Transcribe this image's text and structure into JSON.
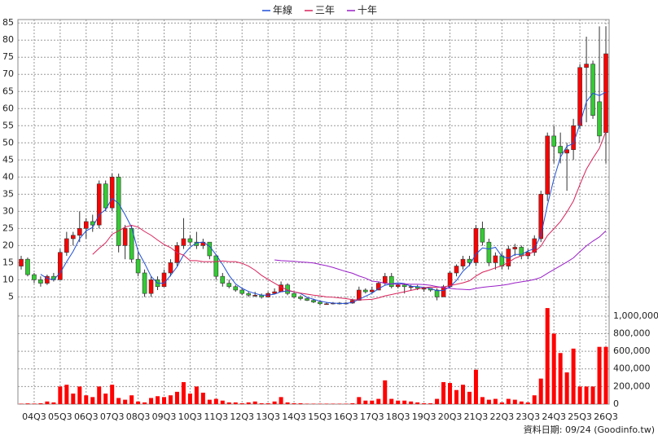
{
  "chart_data": {
    "type": "candlestick",
    "categories": [
      null,
      null,
      "04Q3",
      null,
      null,
      null,
      "05Q3",
      null,
      null,
      null,
      "06Q3",
      null,
      null,
      null,
      "07Q3",
      null,
      null,
      null,
      "08Q3",
      null,
      null,
      null,
      "09Q3",
      null,
      null,
      null,
      "10Q3",
      null,
      null,
      null,
      "11Q3",
      null,
      null,
      null,
      "12Q3",
      null,
      null,
      null,
      "13Q3",
      null,
      null,
      null,
      "14Q3",
      null,
      null,
      null,
      "15Q3",
      null,
      null,
      null,
      "16Q3",
      null,
      null,
      null,
      "17Q3",
      null,
      null,
      null,
      "18Q3",
      null,
      null,
      null,
      "19Q3",
      null,
      null,
      null,
      "20Q3",
      null,
      null,
      null,
      "21Q3",
      null,
      null,
      null,
      "22Q3",
      null,
      null,
      null,
      "23Q3",
      null,
      null,
      null,
      "24Q3",
      null,
      null,
      null,
      "25Q3",
      null,
      null,
      null,
      "26Q3"
    ],
    "open": [
      14,
      16,
      11.5,
      10,
      9,
      11,
      10,
      18,
      22,
      23,
      25,
      27,
      26,
      38,
      31,
      40,
      20,
      25,
      16,
      12,
      6,
      10,
      8,
      12,
      15,
      20,
      22,
      21,
      20,
      21,
      17,
      11,
      9,
      8,
      7,
      6,
      5.5,
      5.5,
      5,
      6,
      6.5,
      8.5,
      6,
      5,
      4.5,
      4,
      3.5,
      3,
      3,
      3.2,
      3,
      3.2,
      4,
      7,
      6.5,
      7,
      9,
      11,
      8,
      8.5,
      8,
      8,
      7.5,
      7.5,
      7,
      5,
      8,
      12,
      14,
      16,
      15,
      25,
      21,
      15,
      17,
      14,
      19,
      19.5,
      17,
      18,
      22,
      35,
      52,
      49,
      47,
      48,
      55,
      72,
      73,
      62,
      53
    ],
    "high": [
      17,
      16.5,
      12,
      11,
      11.5,
      12,
      19,
      24,
      24,
      30,
      28,
      29,
      39,
      39,
      41,
      41,
      26,
      26,
      18,
      13,
      11,
      11,
      13,
      16,
      21,
      28,
      23,
      24,
      22,
      21,
      17.5,
      12,
      10,
      8.5,
      7.5,
      6.5,
      6.5,
      6,
      6.5,
      7.5,
      9.5,
      9,
      6.5,
      5.5,
      5,
      4.5,
      4,
      3.5,
      3.5,
      3.5,
      3.5,
      4.5,
      8,
      7.5,
      8,
      9.5,
      12,
      12,
      9,
      9,
      8.5,
      8.5,
      8,
      7.5,
      7.5,
      8.5,
      12.5,
      14.5,
      17,
      17,
      26,
      27,
      22,
      18,
      18,
      20,
      20.5,
      20,
      19,
      23,
      36,
      53,
      55,
      53,
      50,
      57,
      73,
      81,
      74,
      84,
      84
    ],
    "low": [
      13,
      11,
      9,
      8,
      8.5,
      9.5,
      10,
      17,
      20,
      21,
      22,
      24,
      25,
      30,
      30,
      18,
      16,
      15,
      11,
      5,
      5,
      7,
      8,
      11,
      14,
      19,
      20,
      19,
      19,
      16,
      10,
      8,
      7.5,
      6.5,
      5.5,
      5,
      5,
      4.5,
      5,
      6,
      6.5,
      5.5,
      4.5,
      4,
      3.8,
      3.2,
      2.5,
      2.8,
      2.8,
      2.8,
      2.8,
      3,
      4,
      6,
      6,
      7,
      8.5,
      7.5,
      7.5,
      6,
      7,
      7,
      6.5,
      6.5,
      4,
      5,
      7.5,
      11,
      13,
      14,
      14,
      20,
      14,
      13,
      13,
      13,
      17,
      16,
      16,
      17,
      21,
      33,
      44,
      44,
      36,
      45,
      54,
      56,
      57,
      50,
      44
    ],
    "close": [
      16,
      11.5,
      10,
      9,
      11,
      10,
      18,
      22,
      23,
      25,
      27,
      26,
      38,
      31,
      40,
      20,
      25,
      16,
      12,
      6,
      10,
      8,
      12,
      15,
      20,
      22,
      21,
      20,
      21,
      17,
      11,
      9,
      8,
      7,
      6,
      5.5,
      5.5,
      5,
      6,
      6.5,
      8.5,
      6,
      5,
      4.5,
      4,
      3.5,
      3,
      3,
      3.2,
      3,
      3.2,
      4,
      7,
      6.5,
      7,
      9,
      11,
      8,
      8.5,
      8,
      8,
      7.5,
      7.5,
      7,
      5,
      8,
      12,
      14,
      16,
      15,
      25,
      21,
      15,
      17,
      14,
      19,
      19.5,
      17,
      18,
      22,
      35,
      52,
      49,
      47,
      48,
      55,
      72,
      73,
      58,
      52,
      76
    ],
    "up_color": "#ff0000",
    "down_color": "#33cc33",
    "volume": {
      "color": "#ff0000",
      "values": [
        5000,
        8000,
        6000,
        10000,
        30000,
        20000,
        200000,
        220000,
        120000,
        200000,
        100000,
        80000,
        200000,
        120000,
        220000,
        70000,
        50000,
        100000,
        30000,
        20000,
        70000,
        90000,
        80000,
        100000,
        140000,
        250000,
        120000,
        200000,
        130000,
        50000,
        60000,
        40000,
        20000,
        20000,
        10000,
        20000,
        30000,
        10000,
        10000,
        30000,
        80000,
        20000,
        10000,
        10000,
        5000,
        5000,
        5000,
        5000,
        5000,
        5000,
        5000,
        10000,
        80000,
        40000,
        40000,
        60000,
        270000,
        60000,
        40000,
        40000,
        30000,
        20000,
        10000,
        10000,
        60000,
        250000,
        240000,
        160000,
        220000,
        140000,
        390000,
        80000,
        50000,
        60000,
        20000,
        60000,
        50000,
        30000,
        20000,
        100000,
        290000,
        1090000,
        800000,
        580000,
        360000,
        630000,
        200000,
        200000,
        200000,
        650000,
        650000
      ]
    },
    "series": [
      {
        "name": "年線",
        "color": "#1f4fd8",
        "values": [
          null,
          null,
          null,
          11.6,
          10.4,
          10,
          12,
          15.3,
          18.3,
          22,
          24.3,
          25.3,
          29,
          30.5,
          33.8,
          32.3,
          29,
          25.3,
          18.3,
          14.8,
          11,
          9,
          9,
          11.3,
          13.8,
          17.3,
          19.5,
          20.8,
          21,
          19.8,
          17.3,
          14.5,
          11.3,
          8.8,
          7.5,
          6.6,
          6,
          5.5,
          5.5,
          5.8,
          6.5,
          6.8,
          6.5,
          6,
          4.9,
          4.3,
          3.8,
          3.4,
          3.2,
          3.1,
          3.1,
          3.4,
          4.3,
          5.2,
          6.1,
          7.4,
          8.4,
          8.8,
          9.1,
          8.9,
          8.1,
          8,
          7.8,
          7.5,
          6.8,
          6.9,
          8,
          9.8,
          12.5,
          14.3,
          17.5,
          19.3,
          19,
          19.5,
          16.8,
          16.3,
          17.4,
          17.4,
          18.4,
          19.1,
          23,
          31.8,
          39.5,
          45.8,
          49,
          49.8,
          55.5,
          62,
          64.5,
          63.8,
          64.8
        ]
      },
      {
        "name": "三年",
        "color": "#d9235c",
        "values": [
          null,
          null,
          null,
          null,
          null,
          null,
          null,
          null,
          null,
          null,
          null,
          17.4,
          19.2,
          20.8,
          23.3,
          24.3,
          25.4,
          25.9,
          25.4,
          24.1,
          23,
          21.6,
          20.3,
          19.4,
          17.9,
          17.2,
          15.6,
          15.6,
          15.3,
          15.3,
          15.3,
          15.5,
          15.3,
          15.3,
          14.8,
          14,
          12.8,
          11.3,
          10.1,
          9,
          7.9,
          7,
          6.5,
          6.1,
          5.8,
          5.5,
          5.3,
          5,
          4.9,
          4.7,
          4.5,
          4.2,
          4.1,
          4.2,
          4.3,
          4.7,
          5.3,
          5.7,
          6.1,
          6.5,
          6.9,
          7.3,
          7.7,
          7.9,
          7.8,
          7.9,
          8.3,
          8.7,
          9.1,
          9.7,
          11.1,
          12.2,
          12.8,
          13.5,
          14.1,
          15.1,
          16.3,
          17,
          17.5,
          18.2,
          19.8,
          22.9,
          24.9,
          27,
          29.8,
          33,
          37.8,
          42.3,
          45.5,
          48.4,
          53.3
        ]
      },
      {
        "name": "十年",
        "color": "#9a1fc8",
        "values": [
          null,
          null,
          null,
          null,
          null,
          null,
          null,
          null,
          null,
          null,
          null,
          null,
          null,
          null,
          null,
          null,
          null,
          null,
          null,
          null,
          null,
          null,
          null,
          null,
          null,
          null,
          null,
          null,
          null,
          null,
          null,
          null,
          null,
          null,
          null,
          null,
          null,
          null,
          null,
          15.8,
          15.6,
          15.5,
          15.4,
          15.2,
          15.1,
          14.9,
          14.5,
          14.1,
          13.6,
          13,
          12.4,
          11.9,
          11.1,
          10.5,
          9.6,
          9.4,
          9,
          8.8,
          8.7,
          8.8,
          8.7,
          8.7,
          8.6,
          8.4,
          8,
          7.7,
          7.5,
          7.3,
          7.2,
          7.1,
          7.5,
          7.8,
          8,
          8.2,
          8.4,
          8.7,
          9.1,
          9.4,
          9.7,
          10.1,
          10.7,
          11.9,
          13,
          14.1,
          15.2,
          16.4,
          18.2,
          19.9,
          21.3,
          22.5,
          24.3
        ]
      }
    ],
    "ylim": [
      2,
      86
    ],
    "yticks": [
      5,
      10,
      15,
      20,
      25,
      30,
      35,
      40,
      45,
      50,
      55,
      60,
      65,
      70,
      75,
      80,
      85
    ],
    "y2lim": [
      0,
      1100000
    ],
    "y2ticks": [
      0,
      {
        "value": 200000,
        "label": "200,000"
      },
      {
        "value": 400000,
        "label": "400,000"
      },
      {
        "value": 600000,
        "label": "600,000"
      },
      {
        "value": 800000,
        "label": "800,000"
      },
      {
        "value": 1000000,
        "label": "1,000,000"
      }
    ],
    "grid": true,
    "legend": "top",
    "note": "資料日期: 09/24 (Goodinfo.tw)"
  }
}
